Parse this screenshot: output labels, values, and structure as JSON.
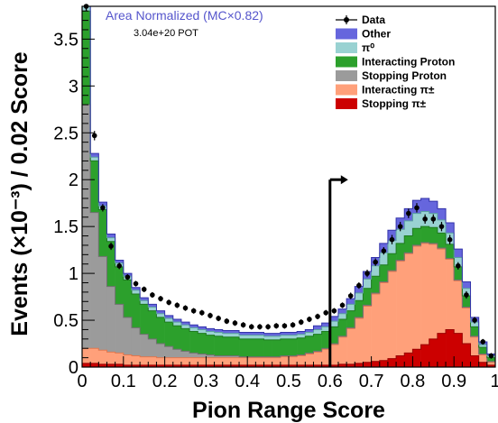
{
  "chart_data": {
    "type": "bar",
    "xlabel": "Pion Range Score",
    "ylabel": "Events (×10⁻³) / 0.02 Score",
    "xlim": [
      0,
      1
    ],
    "ylim": [
      0,
      3.85
    ],
    "y_scale_factor": 0.001,
    "x_ticks": [
      "0",
      "0.1",
      "0.2",
      "0.3",
      "0.4",
      "0.5",
      "0.6",
      "0.7",
      "0.8",
      "0.9",
      "1"
    ],
    "y_ticks": [
      "0",
      "0.5",
      "1",
      "1.5",
      "2",
      "2.5",
      "3",
      "3.5"
    ],
    "annotations": {
      "normalization": "Area Normalized (MC×0.82)",
      "pot": "3.04e+20 POT"
    },
    "cut_arrow_x": 0.6,
    "bin_width": 0.02,
    "bin_lows": [
      0.0,
      0.02,
      0.04,
      0.06,
      0.08,
      0.1,
      0.12,
      0.14,
      0.16,
      0.18,
      0.2,
      0.22,
      0.24,
      0.26,
      0.28,
      0.3,
      0.32,
      0.34,
      0.36,
      0.38,
      0.4,
      0.42,
      0.44,
      0.46,
      0.48,
      0.5,
      0.52,
      0.54,
      0.56,
      0.58,
      0.6,
      0.62,
      0.64,
      0.66,
      0.68,
      0.7,
      0.72,
      0.74,
      0.76,
      0.78,
      0.8,
      0.82,
      0.84,
      0.86,
      0.88,
      0.9,
      0.92,
      0.94,
      0.96,
      0.98
    ],
    "legend": [
      {
        "name": "Data",
        "kind": "marker"
      },
      {
        "name": "Other",
        "color": "#6666dd"
      },
      {
        "name": "π⁰",
        "color": "#99d2d2"
      },
      {
        "name": "Interacting Proton",
        "color": "#2ca02c"
      },
      {
        "name": "Stopping Proton",
        "color": "#9b9b9b"
      },
      {
        "name": "Interacting π±",
        "color": "#ffa07a"
      },
      {
        "name": "Stopping π±",
        "color": "#cc0000"
      }
    ],
    "stack_order_bottom_to_top": [
      "Stopping π±",
      "Interacting π±",
      "Stopping Proton",
      "Interacting Proton",
      "π⁰",
      "Other"
    ],
    "series": [
      {
        "name": "Stopping π±",
        "color": "#cc0000",
        "values": [
          0.04,
          0.04,
          0.03,
          0.03,
          0.03,
          0.02,
          0.02,
          0.02,
          0.02,
          0.02,
          0.02,
          0.02,
          0.02,
          0.02,
          0.02,
          0.02,
          0.02,
          0.02,
          0.02,
          0.02,
          0.02,
          0.02,
          0.02,
          0.02,
          0.02,
          0.02,
          0.02,
          0.02,
          0.02,
          0.02,
          0.02,
          0.03,
          0.03,
          0.04,
          0.05,
          0.06,
          0.07,
          0.09,
          0.12,
          0.15,
          0.19,
          0.24,
          0.3,
          0.36,
          0.4,
          0.36,
          0.25,
          0.12,
          0.05,
          0.02
        ]
      },
      {
        "name": "Interacting π±",
        "color": "#ffa07a",
        "values": [
          0.16,
          0.16,
          0.15,
          0.13,
          0.12,
          0.11,
          0.1,
          0.09,
          0.09,
          0.08,
          0.08,
          0.08,
          0.08,
          0.08,
          0.08,
          0.08,
          0.08,
          0.08,
          0.08,
          0.08,
          0.08,
          0.08,
          0.08,
          0.08,
          0.09,
          0.09,
          0.1,
          0.12,
          0.14,
          0.17,
          0.22,
          0.29,
          0.38,
          0.48,
          0.6,
          0.72,
          0.83,
          0.93,
          1.01,
          1.06,
          1.1,
          1.08,
          1.01,
          0.9,
          0.75,
          0.56,
          0.38,
          0.2,
          0.08,
          0.03
        ]
      },
      {
        "name": "Stopping Proton",
        "color": "#9b9b9b",
        "values": [
          2.6,
          1.45,
          1.0,
          0.7,
          0.52,
          0.4,
          0.3,
          0.24,
          0.19,
          0.15,
          0.12,
          0.09,
          0.07,
          0.05,
          0.04,
          0.03,
          0.02,
          0.02,
          0.02,
          0.01,
          0.01,
          0.01,
          0.01,
          0.01,
          0.01,
          0.01,
          0.01,
          0.01,
          0.01,
          0.01,
          0.01,
          0.01,
          0.01,
          0.01,
          0.01,
          0.01,
          0.01,
          0.01,
          0.01,
          0.01,
          0.01,
          0.01,
          0.01,
          0.01,
          0.01,
          0.01,
          0.01,
          0.01,
          0.01,
          0.01
        ]
      },
      {
        "name": "Interacting Proton",
        "color": "#2ca02c",
        "values": [
          1.0,
          0.55,
          0.5,
          0.48,
          0.4,
          0.4,
          0.36,
          0.32,
          0.3,
          0.28,
          0.26,
          0.25,
          0.24,
          0.23,
          0.22,
          0.21,
          0.21,
          0.2,
          0.2,
          0.19,
          0.19,
          0.19,
          0.18,
          0.18,
          0.18,
          0.18,
          0.18,
          0.18,
          0.18,
          0.18,
          0.18,
          0.18,
          0.18,
          0.18,
          0.18,
          0.18,
          0.18,
          0.18,
          0.18,
          0.18,
          0.18,
          0.17,
          0.17,
          0.16,
          0.15,
          0.14,
          0.12,
          0.1,
          0.07,
          0.04
        ]
      },
      {
        "name": "π⁰",
        "color": "#99d2d2",
        "values": [
          0.05,
          0.04,
          0.04,
          0.04,
          0.04,
          0.04,
          0.04,
          0.04,
          0.04,
          0.04,
          0.04,
          0.04,
          0.04,
          0.04,
          0.04,
          0.04,
          0.04,
          0.04,
          0.04,
          0.04,
          0.04,
          0.04,
          0.04,
          0.04,
          0.04,
          0.04,
          0.04,
          0.04,
          0.05,
          0.05,
          0.06,
          0.06,
          0.07,
          0.08,
          0.1,
          0.11,
          0.13,
          0.14,
          0.15,
          0.16,
          0.16,
          0.16,
          0.15,
          0.14,
          0.12,
          0.1,
          0.08,
          0.05,
          0.03,
          0.02
        ]
      },
      {
        "name": "Other",
        "color": "#6666dd",
        "values": [
          0.05,
          0.04,
          0.04,
          0.04,
          0.03,
          0.03,
          0.03,
          0.03,
          0.03,
          0.03,
          0.03,
          0.03,
          0.03,
          0.03,
          0.03,
          0.03,
          0.03,
          0.03,
          0.03,
          0.03,
          0.03,
          0.03,
          0.03,
          0.03,
          0.03,
          0.03,
          0.03,
          0.03,
          0.04,
          0.04,
          0.05,
          0.05,
          0.06,
          0.07,
          0.08,
          0.09,
          0.1,
          0.11,
          0.12,
          0.13,
          0.14,
          0.14,
          0.13,
          0.12,
          0.11,
          0.09,
          0.07,
          0.05,
          0.03,
          0.02
        ]
      }
    ],
    "data": {
      "name": "Data",
      "values": [
        3.85,
        2.47,
        1.7,
        1.29,
        1.08,
        0.96,
        0.89,
        0.83,
        0.77,
        0.73,
        0.69,
        0.66,
        0.63,
        0.6,
        0.58,
        0.55,
        0.52,
        0.49,
        0.47,
        0.45,
        0.43,
        0.43,
        0.43,
        0.44,
        0.44,
        0.45,
        0.48,
        0.51,
        0.54,
        0.58,
        0.6,
        0.66,
        0.76,
        0.87,
        1.0,
        1.12,
        1.24,
        1.36,
        1.5,
        1.64,
        1.7,
        1.58,
        1.58,
        1.5,
        1.36,
        1.08,
        0.77,
        0.5,
        0.27,
        0.12
      ],
      "errors": [
        0.05,
        0.05,
        0.04,
        0.04,
        0.035,
        0.03,
        0.03,
        0.03,
        0.03,
        0.03,
        0.03,
        0.03,
        0.03,
        0.03,
        0.03,
        0.03,
        0.03,
        0.03,
        0.03,
        0.03,
        0.03,
        0.03,
        0.03,
        0.03,
        0.03,
        0.03,
        0.03,
        0.03,
        0.03,
        0.03,
        0.03,
        0.03,
        0.035,
        0.035,
        0.04,
        0.04,
        0.04,
        0.05,
        0.05,
        0.05,
        0.05,
        0.05,
        0.05,
        0.05,
        0.05,
        0.04,
        0.04,
        0.035,
        0.03,
        0.03
      ]
    }
  }
}
